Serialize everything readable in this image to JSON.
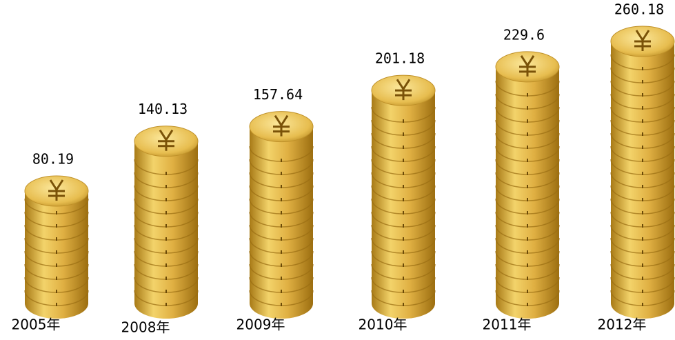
{
  "chart_data": {
    "type": "pictorial-bar",
    "categories": [
      "2005年",
      "2008年",
      "2009年",
      "2010年",
      "2011年",
      "2012年"
    ],
    "values": [
      80.19,
      140.13,
      157.64,
      201.18,
      229.6,
      260.18
    ],
    "color": "#d9a630"
  }
}
